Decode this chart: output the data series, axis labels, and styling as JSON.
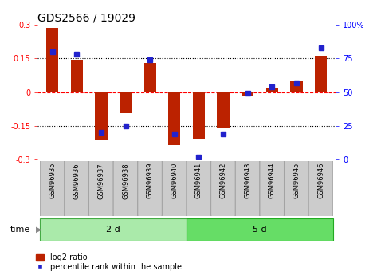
{
  "title": "GDS2566 / 19029",
  "samples": [
    "GSM96935",
    "GSM96936",
    "GSM96937",
    "GSM96938",
    "GSM96939",
    "GSM96940",
    "GSM96941",
    "GSM96942",
    "GSM96943",
    "GSM96944",
    "GSM96945",
    "GSM96946"
  ],
  "log2_ratio": [
    0.285,
    0.145,
    -0.215,
    -0.095,
    0.13,
    -0.235,
    -0.21,
    -0.16,
    -0.015,
    0.02,
    0.05,
    0.16
  ],
  "percentile_rank": [
    80,
    78,
    20,
    25,
    74,
    19,
    2,
    19,
    49,
    54,
    57,
    83
  ],
  "group1_label": "2 d",
  "group2_label": "5 d",
  "bar_color": "#bb2200",
  "dot_color": "#2222cc",
  "ylim": [
    -0.3,
    0.3
  ],
  "y2lim": [
    0,
    100
  ],
  "yticks": [
    -0.3,
    -0.15,
    0.0,
    0.15,
    0.3
  ],
  "y2ticks": [
    0,
    25,
    50,
    75,
    100
  ],
  "bg_color": "#ffffff",
  "group1_bg": "#aaeaaa",
  "group2_bg": "#66dd66",
  "time_label": "time",
  "legend_log2": "log2 ratio",
  "legend_pct": "percentile rank within the sample",
  "title_fontsize": 10,
  "tick_fontsize": 7,
  "sample_fontsize": 6
}
